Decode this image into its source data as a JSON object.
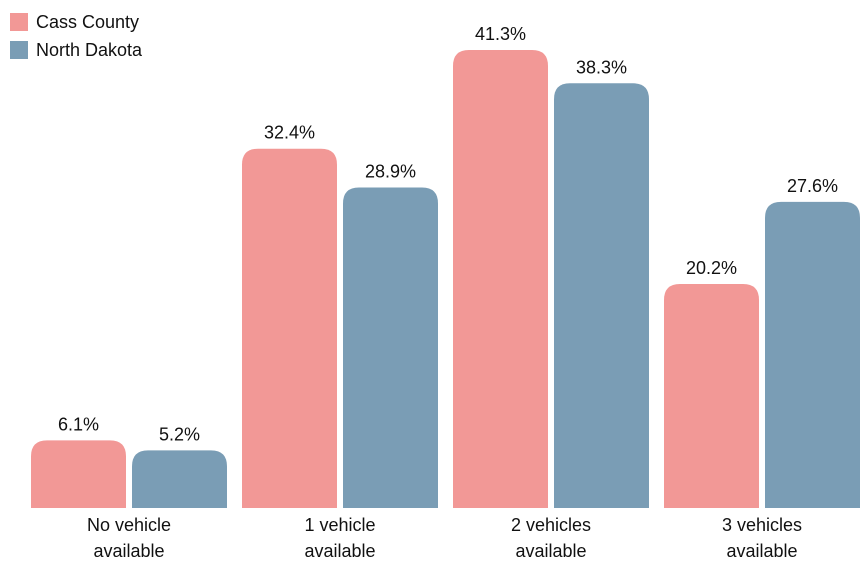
{
  "chart_data": {
    "type": "bar",
    "categories": [
      [
        "No vehicle",
        "available"
      ],
      [
        "1 vehicle",
        "available"
      ],
      [
        "2 vehicles",
        "available"
      ],
      [
        "3 vehicles",
        "available"
      ]
    ],
    "series": [
      {
        "name": "Cass County",
        "values": [
          6.1,
          32.4,
          41.3,
          20.2
        ],
        "labels": [
          "6.1%",
          "32.4%",
          "41.3%",
          "20.2%"
        ],
        "color": "#f29896"
      },
      {
        "name": "North Dakota",
        "values": [
          5.2,
          28.9,
          38.3,
          27.6
        ],
        "labels": [
          "5.2%",
          "28.9%",
          "38.3%",
          "27.6%"
        ],
        "color": "#7a9db5"
      }
    ],
    "ylim": [
      0,
      41.3
    ],
    "grid": false,
    "legend_position": "top-left"
  }
}
